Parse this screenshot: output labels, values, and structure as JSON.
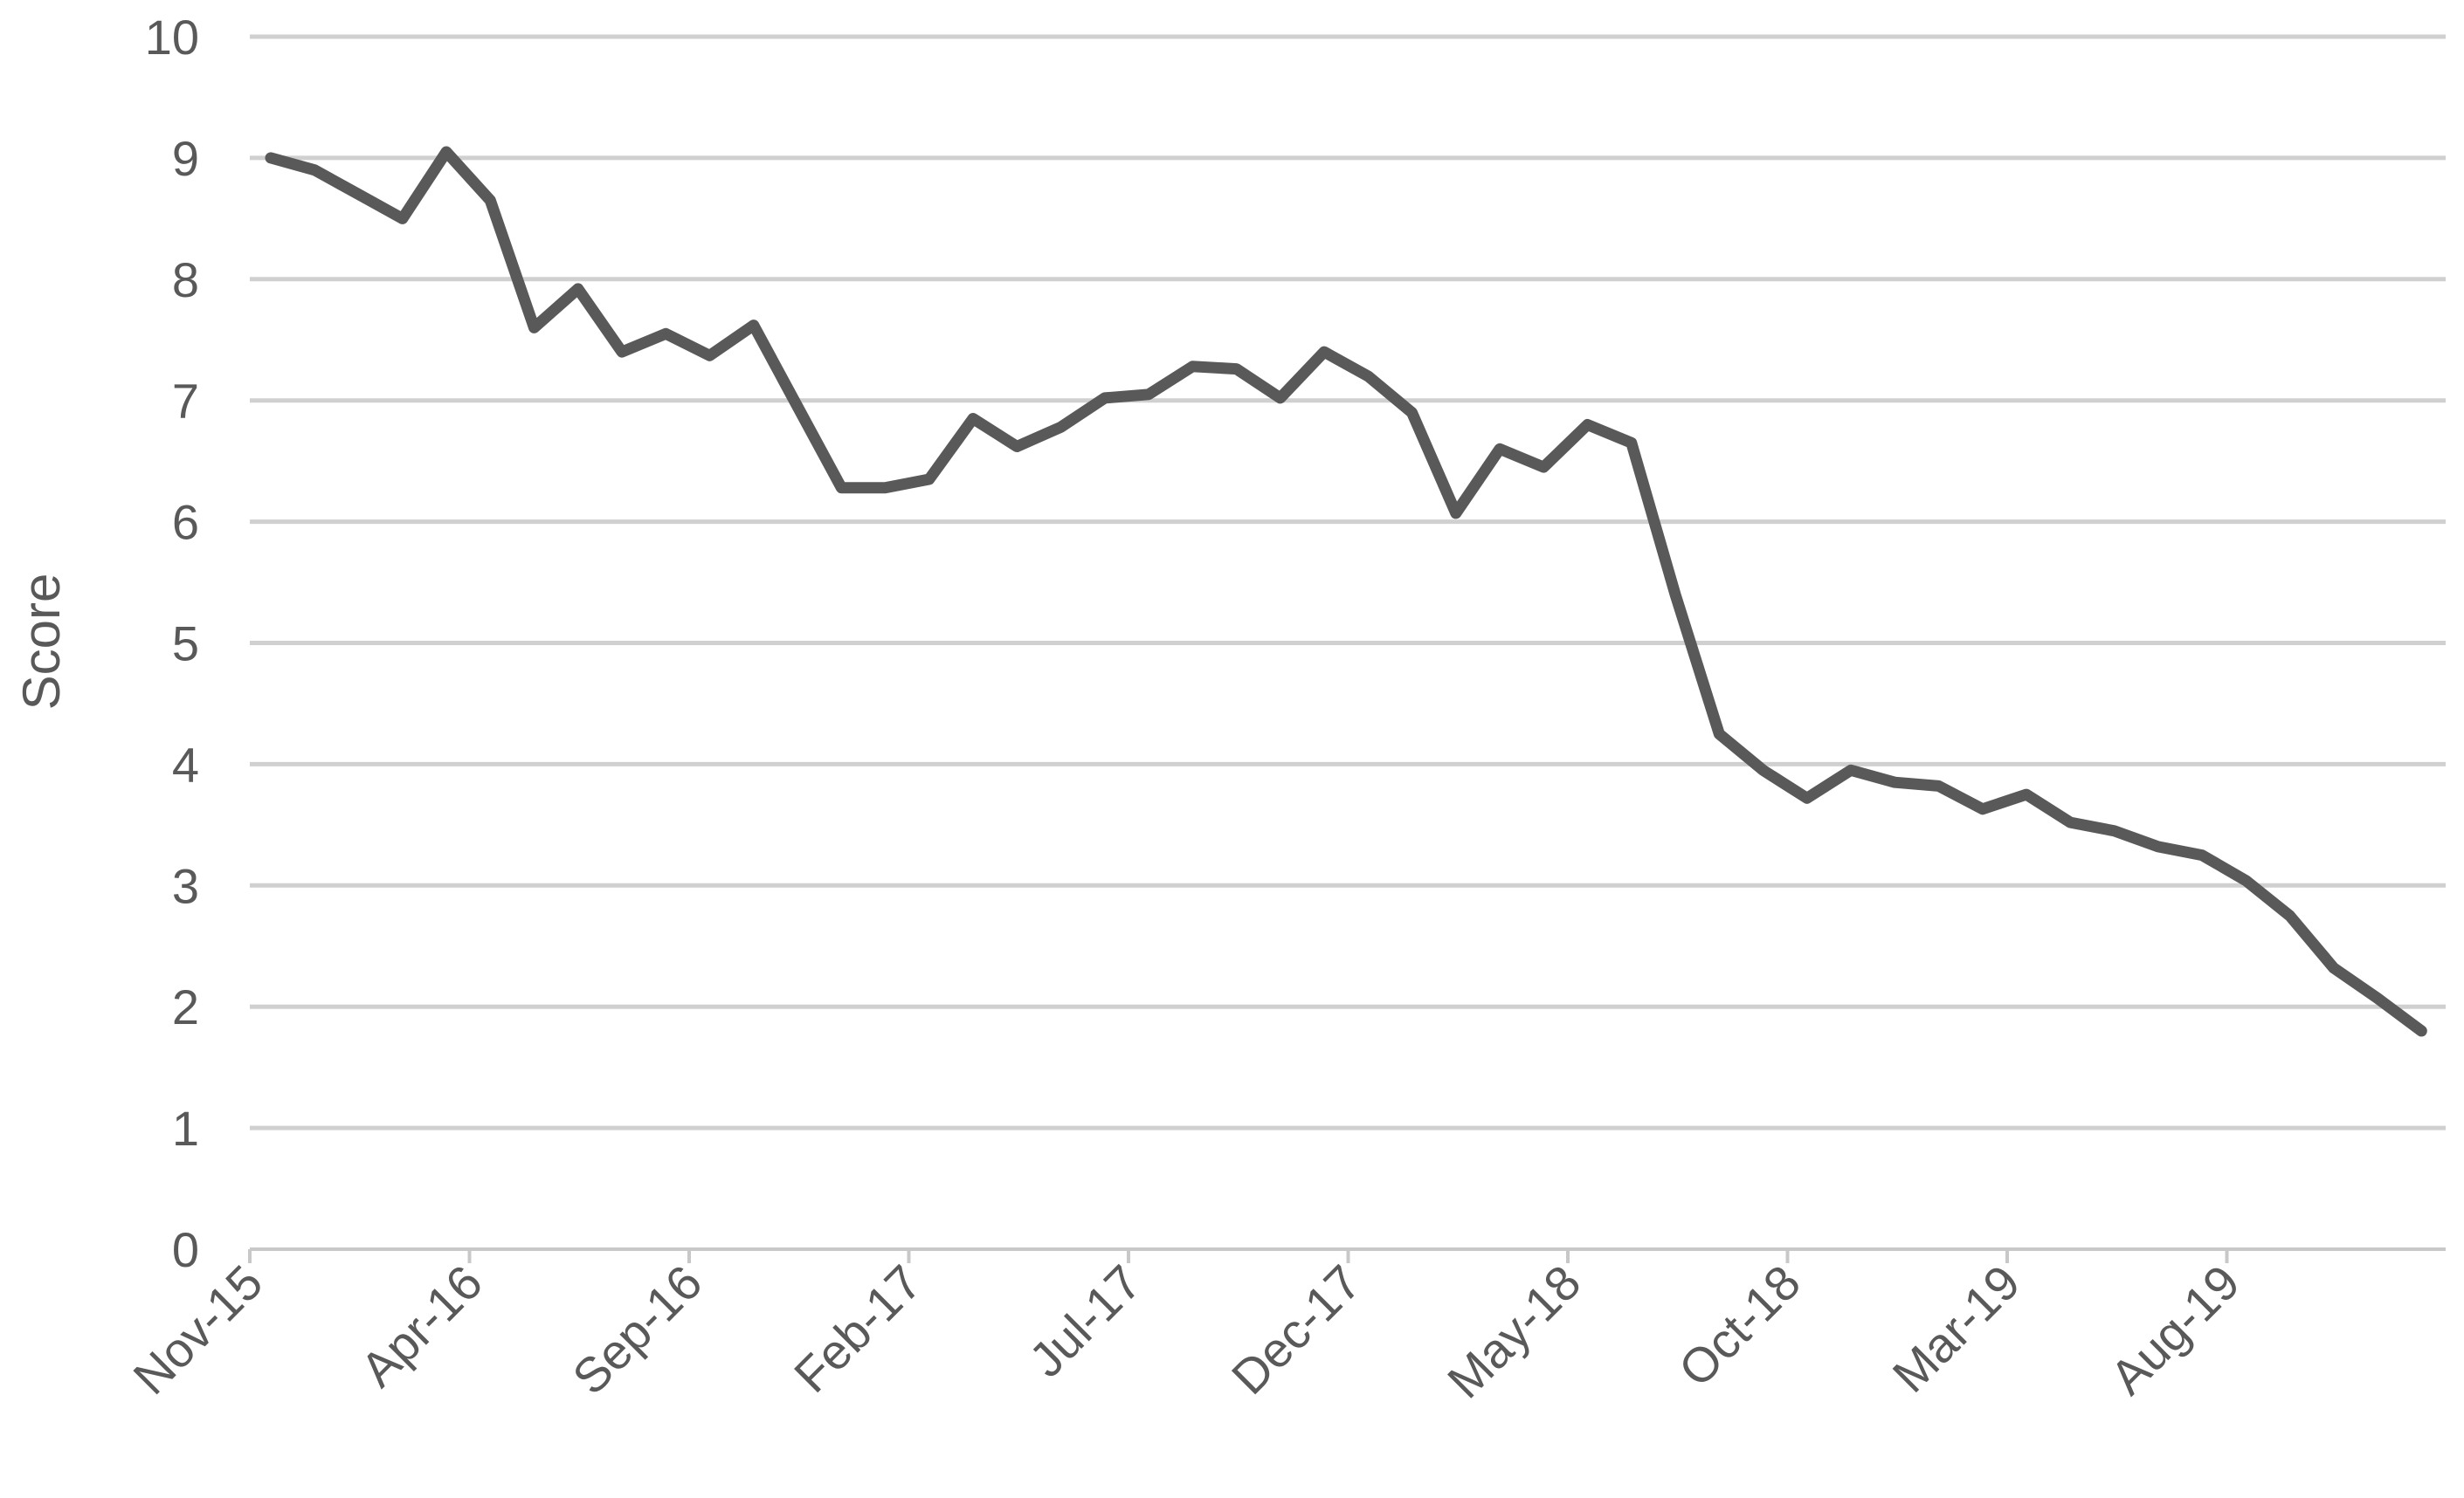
{
  "chart_data": {
    "type": "line",
    "title": "",
    "xlabel": "",
    "ylabel": "Score",
    "ylim": [
      0,
      10
    ],
    "yticks": [
      0,
      1,
      2,
      3,
      4,
      5,
      6,
      7,
      8,
      9,
      10
    ],
    "grid": true,
    "legend": "none",
    "x_tick_labels": [
      "Nov-15",
      "Apr-16",
      "Sep-16",
      "Feb-17",
      "Jul-17",
      "Dec-17",
      "May-18",
      "Oct-18",
      "Mar-19",
      "Aug-19"
    ],
    "x": [
      "Nov-15",
      "Dec-15",
      "Jan-16",
      "Feb-16",
      "Mar-16",
      "Apr-16",
      "May-16",
      "Jun-16",
      "Jul-16",
      "Aug-16",
      "Sep-16",
      "Oct-16",
      "Nov-16",
      "Dec-16",
      "Jan-17",
      "Feb-17",
      "Mar-17",
      "Apr-17",
      "May-17",
      "Jun-17",
      "Jul-17",
      "Aug-17",
      "Sep-17",
      "Oct-17",
      "Nov-17",
      "Dec-17",
      "Jan-18",
      "Feb-18",
      "Mar-18",
      "Apr-18",
      "May-18",
      "Jun-18",
      "Jul-18",
      "Aug-18",
      "Sep-18",
      "Oct-18",
      "Nov-18",
      "Dec-18",
      "Jan-19",
      "Feb-19",
      "Mar-19",
      "Apr-19",
      "May-19",
      "Jun-19",
      "Jul-19",
      "Aug-19",
      "Sep-19",
      "Oct-19",
      "Nov-19",
      "Dec-19"
    ],
    "series": [
      {
        "color": "#595959",
        "values": [
          9.0,
          8.9,
          8.7,
          8.5,
          9.05,
          8.65,
          7.6,
          7.92,
          7.4,
          7.55,
          7.37,
          7.62,
          6.95,
          6.28,
          6.28,
          6.35,
          6.85,
          6.62,
          6.78,
          7.02,
          7.05,
          7.28,
          7.26,
          7.02,
          7.4,
          7.2,
          6.9,
          6.07,
          6.6,
          6.45,
          6.8,
          6.65,
          5.4,
          4.25,
          3.95,
          3.72,
          3.95,
          3.85,
          3.82,
          3.63,
          3.75,
          3.52,
          3.45,
          3.32,
          3.25,
          3.04,
          2.75,
          2.32,
          2.07,
          1.8
        ]
      }
    ]
  }
}
